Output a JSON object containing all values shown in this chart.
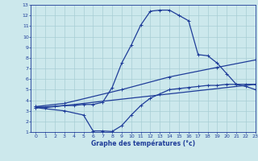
{
  "bg_color": "#cce8ec",
  "line_color": "#1f3d99",
  "grid_color": "#a8cdd4",
  "xlabel": "Graphe des températures (°c)",
  "xlabel_color": "#1f3d99",
  "xlim": [
    -0.5,
    23
  ],
  "ylim": [
    1,
    13
  ],
  "xticks": [
    0,
    1,
    2,
    3,
    4,
    5,
    6,
    7,
    8,
    9,
    10,
    11,
    12,
    13,
    14,
    15,
    16,
    17,
    18,
    19,
    20,
    21,
    22,
    23
  ],
  "yticks": [
    1,
    2,
    3,
    4,
    5,
    6,
    7,
    8,
    9,
    10,
    11,
    12,
    13
  ],
  "line1_x": [
    0,
    1,
    2,
    3,
    4,
    5,
    6,
    7,
    8,
    9,
    10,
    11,
    12,
    13,
    14,
    15,
    16,
    17,
    18,
    19,
    20,
    21,
    22,
    23
  ],
  "line1_y": [
    3.4,
    3.3,
    3.4,
    3.5,
    3.5,
    3.6,
    3.6,
    3.8,
    5.2,
    7.5,
    9.2,
    11.1,
    12.4,
    12.5,
    12.5,
    12.0,
    11.5,
    8.3,
    8.2,
    7.5,
    6.5,
    5.5,
    5.3,
    5.0
  ],
  "line2_x": [
    0,
    3,
    9,
    14,
    19,
    23
  ],
  "line2_y": [
    3.4,
    3.7,
    5.0,
    6.2,
    7.1,
    7.8
  ],
  "line3_x": [
    0,
    3,
    5,
    6,
    7,
    8,
    9,
    10,
    11,
    12,
    13,
    14,
    15,
    16,
    17,
    18,
    19,
    20,
    21,
    22,
    23
  ],
  "line3_y": [
    3.3,
    3.0,
    2.6,
    1.1,
    1.1,
    1.05,
    1.6,
    2.6,
    3.5,
    4.2,
    4.6,
    5.0,
    5.1,
    5.2,
    5.3,
    5.4,
    5.4,
    5.5,
    5.5,
    5.5,
    5.5
  ],
  "line4_x": [
    0,
    3,
    23
  ],
  "line4_y": [
    3.3,
    3.5,
    5.5
  ]
}
